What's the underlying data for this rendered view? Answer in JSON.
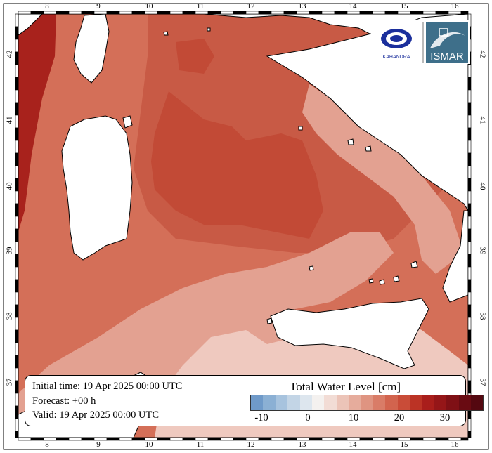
{
  "map": {
    "lon_ticks": [
      "8",
      "9",
      "10",
      "11",
      "12",
      "13",
      "14",
      "15",
      "16"
    ],
    "lat_ticks": [
      "42",
      "41",
      "40",
      "39",
      "38",
      "37"
    ],
    "colors": {
      "open_sea_dark": "#c85a45",
      "open_sea_mid": "#d46f58",
      "nw_corner": "#a8221c",
      "central_core": "#c24a36",
      "light_band": "#e3a191",
      "pale_south": "#efc9bf",
      "land": "#ffffff",
      "coast_line": "#000000"
    },
    "logos": {
      "left_logo_text": "KAHANDRA",
      "right_logo_text": "ISMAR"
    }
  },
  "info": {
    "initial_time": "Initial time: 19 Apr 2025 00:00 UTC",
    "forecast": "Forecast: +00 h",
    "valid": "Valid: 19 Apr 2025 00:00 UTC"
  },
  "legend": {
    "title": "Total Water Level [cm]",
    "tick_labels": [
      "-10",
      "0",
      "10",
      "20",
      "30"
    ],
    "colors": [
      "#6f9ac9",
      "#8bb0d4",
      "#a7c3de",
      "#c3d5e6",
      "#dde6ee",
      "#f4f1ef",
      "#f2dcd5",
      "#ecc4b8",
      "#e6ac9c",
      "#df9481",
      "#d97c67",
      "#d2644e",
      "#c94c38",
      "#bb3325",
      "#a91e1b",
      "#951618",
      "#7f1015",
      "#690b12",
      "#540810"
    ]
  }
}
